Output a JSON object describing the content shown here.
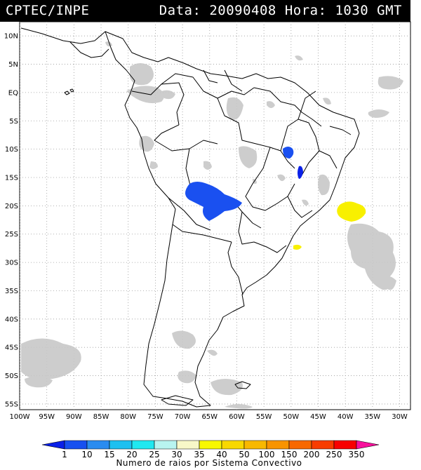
{
  "header": {
    "source": "CPTEC/INPE",
    "date_label": "Data:",
    "date_value": "20090408",
    "time_label": "Hora:",
    "time_value": "1030 GMT"
  },
  "map": {
    "lat_labels": [
      "10N",
      "5N",
      "EQ",
      "5S",
      "10S",
      "15S",
      "20S",
      "25S",
      "30S",
      "35S",
      "40S",
      "45S",
      "50S",
      "55S"
    ],
    "lon_labels": [
      "100W",
      "95W",
      "90W",
      "85W",
      "80W",
      "75W",
      "70W",
      "65W",
      "60W",
      "55W",
      "50W",
      "45W",
      "40W",
      "35W",
      "30W"
    ],
    "lon_range": [
      -100,
      -28
    ],
    "lat_range": [
      -56,
      12.5
    ],
    "colors": {
      "land_border": "#000000",
      "cloud": "#c8c8c8",
      "grid": "#9a9a9a"
    }
  },
  "colorbar": {
    "labels": [
      "1",
      "10",
      "15",
      "20",
      "25",
      "30",
      "35",
      "40",
      "50",
      "100",
      "150",
      "200",
      "250",
      "350"
    ],
    "colors": [
      "#0a20e8",
      "#1750f0",
      "#2a8cf0",
      "#1ec0f0",
      "#20e8f0",
      "#b8f4f0",
      "#f8f8c8",
      "#f8f800",
      "#f8d800",
      "#f8b800",
      "#f89400",
      "#f86800",
      "#f83c00",
      "#f80000",
      "#f8109c"
    ],
    "title": "Numero de raios por Sistema Convectivo"
  }
}
